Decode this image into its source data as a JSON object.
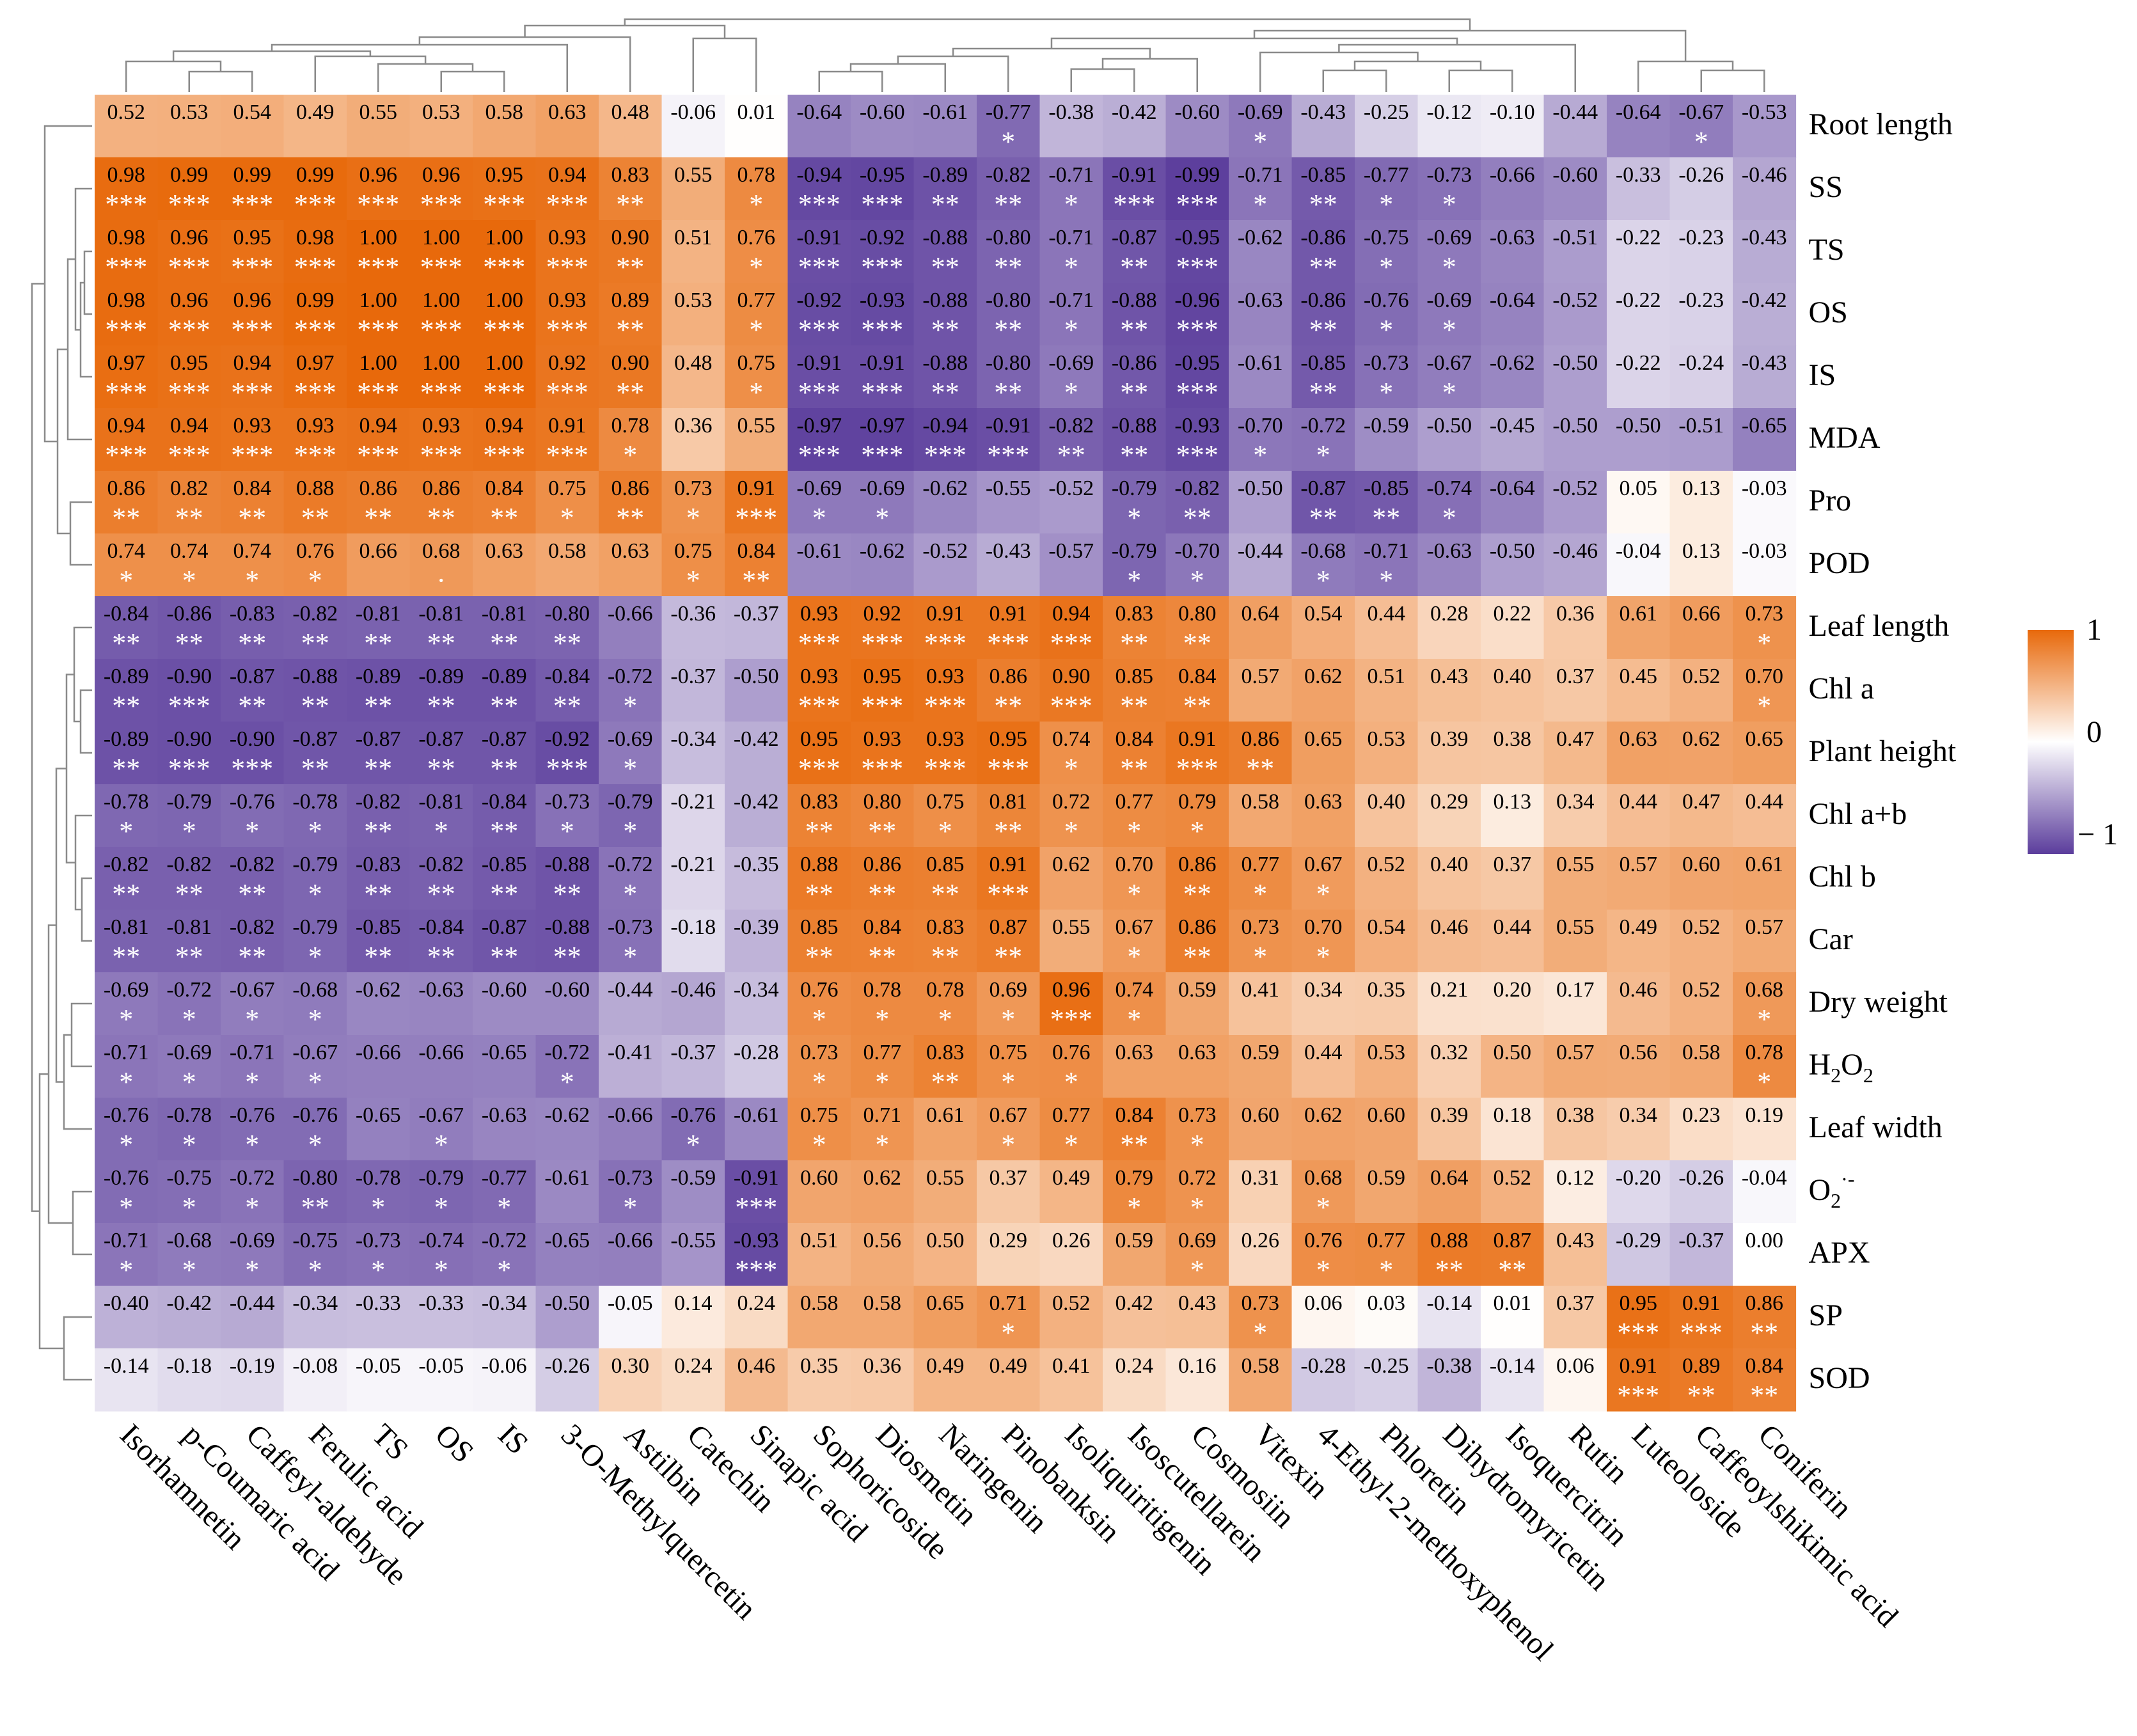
{
  "chart_data": {
    "type": "heatmap",
    "title": "",
    "columns": [
      "Isorhamnetin",
      "p-Coumaric acid",
      "Caffeyl-aldehyde",
      "Ferulic acid",
      "TS",
      "OS",
      "IS",
      "3-O-Methylquercetin",
      "Astilbin",
      "Catechin",
      "Sinapic acid",
      "Sophoricoside",
      "Diosmetin",
      "Naringenin",
      "Pinobanksin",
      "Isoliquiritigenin",
      "Isoscutellarein",
      "Cosmosiin",
      "Vitexin",
      "4-Ethyl-2-methoxyphenol",
      "Phloretin",
      "Dihydromyricetin",
      "Isoquercitrin",
      "Rutin",
      "Luteoloside",
      "Caffeoylshikimic acid",
      "Coniferin"
    ],
    "rows": [
      "Root length",
      "SS",
      "TS",
      "OS",
      "IS",
      "MDA",
      "Pro",
      "POD",
      "Leaf length",
      "Chl a",
      "Plant height",
      "Chl a+b",
      "Chl b",
      "Car",
      "Dry weight",
      "H2O2",
      "Leaf width",
      "O2-",
      "APX",
      "SP",
      "SOD"
    ],
    "row_labels_display": [
      {
        "main": "Root length"
      },
      {
        "main": "SS"
      },
      {
        "main": "TS"
      },
      {
        "main": "OS"
      },
      {
        "main": "IS"
      },
      {
        "main": "MDA"
      },
      {
        "main": "Pro"
      },
      {
        "main": "POD"
      },
      {
        "main": "Leaf length"
      },
      {
        "main": "Chl a"
      },
      {
        "main": "Plant height"
      },
      {
        "main": "Chl a+b"
      },
      {
        "main": "Chl b"
      },
      {
        "main": "Car"
      },
      {
        "main": "Dry weight"
      },
      {
        "main": "H",
        "sub": "2",
        "main2": "O",
        "sub2": "2"
      },
      {
        "main": "Leaf width"
      },
      {
        "main": "O",
        "sub": "2",
        "sup": "·-"
      },
      {
        "main": "APX"
      },
      {
        "main": "SP"
      },
      {
        "main": "SOD"
      }
    ],
    "values": [
      [
        0.52,
        0.53,
        0.54,
        0.49,
        0.55,
        0.53,
        0.58,
        0.63,
        0.48,
        -0.06,
        0.01,
        -0.64,
        -0.6,
        -0.61,
        -0.77,
        -0.38,
        -0.42,
        -0.6,
        -0.69,
        -0.43,
        -0.25,
        -0.12,
        -0.1,
        -0.44,
        -0.64,
        -0.67,
        -0.53
      ],
      [
        0.98,
        0.99,
        0.99,
        0.99,
        0.96,
        0.96,
        0.95,
        0.94,
        0.83,
        0.55,
        0.78,
        -0.94,
        -0.95,
        -0.89,
        -0.82,
        -0.71,
        -0.91,
        -0.99,
        -0.71,
        -0.85,
        -0.77,
        -0.73,
        -0.66,
        -0.6,
        -0.33,
        -0.26,
        -0.46
      ],
      [
        0.98,
        0.96,
        0.95,
        0.98,
        1.0,
        1.0,
        1.0,
        0.93,
        0.9,
        0.51,
        0.76,
        -0.91,
        -0.92,
        -0.88,
        -0.8,
        -0.71,
        -0.87,
        -0.95,
        -0.62,
        -0.86,
        -0.75,
        -0.69,
        -0.63,
        -0.51,
        -0.22,
        -0.23,
        -0.43
      ],
      [
        0.98,
        0.96,
        0.96,
        0.99,
        1.0,
        1.0,
        1.0,
        0.93,
        0.89,
        0.53,
        0.77,
        -0.92,
        -0.93,
        -0.88,
        -0.8,
        -0.71,
        -0.88,
        -0.96,
        -0.63,
        -0.86,
        -0.76,
        -0.69,
        -0.64,
        -0.52,
        -0.22,
        -0.23,
        -0.42
      ],
      [
        0.97,
        0.95,
        0.94,
        0.97,
        1.0,
        1.0,
        1.0,
        0.92,
        0.9,
        0.48,
        0.75,
        -0.91,
        -0.91,
        -0.88,
        -0.8,
        -0.69,
        -0.86,
        -0.95,
        -0.61,
        -0.85,
        -0.73,
        -0.67,
        -0.62,
        -0.5,
        -0.22,
        -0.24,
        -0.43
      ],
      [
        0.94,
        0.94,
        0.93,
        0.93,
        0.94,
        0.93,
        0.94,
        0.91,
        0.78,
        0.36,
        0.55,
        -0.97,
        -0.97,
        -0.94,
        -0.91,
        -0.82,
        -0.88,
        -0.93,
        -0.7,
        -0.72,
        -0.59,
        -0.5,
        -0.45,
        -0.5,
        -0.5,
        -0.51,
        -0.65
      ],
      [
        0.86,
        0.82,
        0.84,
        0.88,
        0.86,
        0.86,
        0.84,
        0.75,
        0.86,
        0.73,
        0.91,
        -0.69,
        -0.69,
        -0.62,
        -0.55,
        -0.52,
        -0.79,
        -0.82,
        -0.5,
        -0.87,
        -0.85,
        -0.74,
        -0.64,
        -0.52,
        0.05,
        0.13,
        -0.03
      ],
      [
        0.74,
        0.74,
        0.74,
        0.76,
        0.66,
        0.68,
        0.63,
        0.58,
        0.63,
        0.75,
        0.84,
        -0.61,
        -0.62,
        -0.52,
        -0.43,
        -0.57,
        -0.79,
        -0.7,
        -0.44,
        -0.68,
        -0.71,
        -0.63,
        -0.5,
        -0.46,
        -0.04,
        0.13,
        -0.03
      ],
      [
        -0.84,
        -0.86,
        -0.83,
        -0.82,
        -0.81,
        -0.81,
        -0.81,
        -0.8,
        -0.66,
        -0.36,
        -0.37,
        0.93,
        0.92,
        0.91,
        0.91,
        0.94,
        0.83,
        0.8,
        0.64,
        0.54,
        0.44,
        0.28,
        0.22,
        0.36,
        0.61,
        0.66,
        0.73
      ],
      [
        -0.89,
        -0.9,
        -0.87,
        -0.88,
        -0.89,
        -0.89,
        -0.89,
        -0.84,
        -0.72,
        -0.37,
        -0.5,
        0.93,
        0.95,
        0.93,
        0.86,
        0.9,
        0.85,
        0.84,
        0.57,
        0.62,
        0.51,
        0.43,
        0.4,
        0.37,
        0.45,
        0.52,
        0.7
      ],
      [
        -0.89,
        -0.9,
        -0.9,
        -0.87,
        -0.87,
        -0.87,
        -0.87,
        -0.92,
        -0.69,
        -0.34,
        -0.42,
        0.95,
        0.93,
        0.93,
        0.95,
        0.74,
        0.84,
        0.91,
        0.86,
        0.65,
        0.53,
        0.39,
        0.38,
        0.47,
        0.63,
        0.62,
        0.65
      ],
      [
        -0.78,
        -0.79,
        -0.76,
        -0.78,
        -0.82,
        -0.81,
        -0.84,
        -0.73,
        -0.79,
        -0.21,
        -0.42,
        0.83,
        0.8,
        0.75,
        0.81,
        0.72,
        0.77,
        0.79,
        0.58,
        0.63,
        0.4,
        0.29,
        0.13,
        0.34,
        0.44,
        0.47,
        0.44
      ],
      [
        -0.82,
        -0.82,
        -0.82,
        -0.79,
        -0.83,
        -0.82,
        -0.85,
        -0.88,
        -0.72,
        -0.21,
        -0.35,
        0.88,
        0.86,
        0.85,
        0.91,
        0.62,
        0.7,
        0.86,
        0.77,
        0.67,
        0.52,
        0.4,
        0.37,
        0.55,
        0.57,
        0.6,
        0.61
      ],
      [
        -0.81,
        -0.81,
        -0.82,
        -0.79,
        -0.85,
        -0.84,
        -0.87,
        -0.88,
        -0.73,
        -0.18,
        -0.39,
        0.85,
        0.84,
        0.83,
        0.87,
        0.55,
        0.67,
        0.86,
        0.73,
        0.7,
        0.54,
        0.46,
        0.44,
        0.55,
        0.49,
        0.52,
        0.57
      ],
      [
        -0.69,
        -0.72,
        -0.67,
        -0.68,
        -0.62,
        -0.63,
        -0.6,
        -0.6,
        -0.44,
        -0.46,
        -0.34,
        0.76,
        0.78,
        0.78,
        0.69,
        0.96,
        0.74,
        0.59,
        0.41,
        0.34,
        0.35,
        0.21,
        0.2,
        0.17,
        0.46,
        0.52,
        0.68
      ],
      [
        -0.71,
        -0.69,
        -0.71,
        -0.67,
        -0.66,
        -0.66,
        -0.65,
        -0.72,
        -0.41,
        -0.37,
        -0.28,
        0.73,
        0.77,
        0.83,
        0.75,
        0.76,
        0.63,
        0.63,
        0.59,
        0.44,
        0.53,
        0.32,
        0.5,
        0.57,
        0.56,
        0.58,
        0.78
      ],
      [
        -0.76,
        -0.78,
        -0.76,
        -0.76,
        -0.65,
        -0.67,
        -0.63,
        -0.62,
        -0.66,
        -0.76,
        -0.61,
        0.75,
        0.71,
        0.61,
        0.67,
        0.77,
        0.84,
        0.73,
        0.6,
        0.62,
        0.6,
        0.39,
        0.18,
        0.38,
        0.34,
        0.23,
        0.19
      ],
      [
        -0.76,
        -0.75,
        -0.72,
        -0.8,
        -0.78,
        -0.79,
        -0.77,
        -0.61,
        -0.73,
        -0.59,
        -0.91,
        0.6,
        0.62,
        0.55,
        0.37,
        0.49,
        0.79,
        0.72,
        0.31,
        0.68,
        0.59,
        0.64,
        0.52,
        0.12,
        -0.2,
        -0.26,
        -0.04
      ],
      [
        -0.71,
        -0.68,
        -0.69,
        -0.75,
        -0.73,
        -0.74,
        -0.72,
        -0.65,
        -0.66,
        -0.55,
        -0.93,
        0.51,
        0.56,
        0.5,
        0.29,
        0.26,
        0.59,
        0.69,
        0.26,
        0.76,
        0.77,
        0.88,
        0.87,
        0.43,
        -0.29,
        -0.37,
        -0.0
      ],
      [
        -0.4,
        -0.42,
        -0.44,
        -0.34,
        -0.33,
        -0.33,
        -0.34,
        -0.5,
        -0.05,
        0.14,
        0.24,
        0.58,
        0.58,
        0.65,
        0.71,
        0.52,
        0.42,
        0.43,
        0.73,
        0.06,
        0.03,
        -0.14,
        0.01,
        0.37,
        0.95,
        0.91,
        0.86
      ],
      [
        -0.14,
        -0.18,
        -0.19,
        -0.08,
        -0.05,
        -0.05,
        -0.06,
        -0.26,
        0.3,
        0.24,
        0.46,
        0.35,
        0.36,
        0.49,
        0.49,
        0.41,
        0.24,
        0.16,
        0.58,
        -0.28,
        -0.25,
        -0.38,
        -0.14,
        0.06,
        0.91,
        0.89,
        0.84
      ]
    ],
    "significance": [
      [
        "",
        "",
        "",
        "",
        "",
        "",
        "",
        "",
        "",
        "",
        "",
        "",
        "",
        "",
        "*",
        "",
        "",
        "",
        "*",
        "",
        "",
        "",
        "",
        "",
        "",
        "*",
        ""
      ],
      [
        "***",
        "***",
        "***",
        "***",
        "***",
        "***",
        "***",
        "***",
        "**",
        "",
        "*",
        "***",
        "***",
        "**",
        "**",
        "*",
        "***",
        "***",
        "*",
        "**",
        "*",
        "*",
        "",
        "",
        "",
        "",
        ""
      ],
      [
        "***",
        "***",
        "***",
        "***",
        "***",
        "***",
        "***",
        "***",
        "**",
        "",
        "*",
        "***",
        "***",
        "**",
        "**",
        "*",
        "**",
        "***",
        "",
        "**",
        "*",
        "*",
        "",
        "",
        "",
        "",
        ""
      ],
      [
        "***",
        "***",
        "***",
        "***",
        "***",
        "***",
        "***",
        "***",
        "**",
        "",
        "*",
        "***",
        "***",
        "**",
        "**",
        "*",
        "**",
        "***",
        "",
        "**",
        "*",
        "*",
        "",
        "",
        "",
        "",
        ""
      ],
      [
        "***",
        "***",
        "***",
        "***",
        "***",
        "***",
        "***",
        "***",
        "**",
        "",
        "*",
        "***",
        "***",
        "**",
        "**",
        "*",
        "**",
        "***",
        "",
        "**",
        "*",
        "*",
        "",
        "",
        "",
        "",
        ""
      ],
      [
        "***",
        "***",
        "***",
        "***",
        "***",
        "***",
        "***",
        "***",
        "*",
        "",
        "",
        "***",
        "***",
        "***",
        "***",
        "**",
        "**",
        "***",
        "*",
        "*",
        "",
        "",
        "",
        "",
        "",
        "",
        ""
      ],
      [
        "**",
        "**",
        "**",
        "**",
        "**",
        "**",
        "**",
        "*",
        "**",
        "*",
        "***",
        "*",
        "*",
        "",
        "",
        "",
        "*",
        "**",
        "",
        "**",
        "**",
        "*",
        "",
        "",
        "",
        "",
        ""
      ],
      [
        "*",
        "*",
        "*",
        "*",
        "",
        "·",
        "",
        "",
        "",
        "*",
        "**",
        "",
        "",
        "",
        "",
        "",
        "*",
        "*",
        "",
        "*",
        "*",
        "",
        "",
        "",
        "",
        "",
        ""
      ],
      [
        "**",
        "**",
        "**",
        "**",
        "**",
        "**",
        "**",
        "**",
        "",
        "",
        "",
        "***",
        "***",
        "***",
        "***",
        "***",
        "**",
        "**",
        "",
        "",
        "",
        "",
        "",
        "",
        "",
        "",
        "*"
      ],
      [
        "**",
        "***",
        "**",
        "**",
        "**",
        "**",
        "**",
        "**",
        "*",
        "",
        "",
        "***",
        "***",
        "***",
        "**",
        "***",
        "**",
        "**",
        "",
        "",
        "",
        "",
        "",
        "",
        "",
        "",
        "*"
      ],
      [
        "**",
        "***",
        "***",
        "**",
        "**",
        "**",
        "**",
        "***",
        "*",
        "",
        "",
        "***",
        "***",
        "***",
        "***",
        "*",
        "**",
        "***",
        "**",
        "",
        "",
        "",
        "",
        "",
        "",
        "",
        ""
      ],
      [
        "*",
        "*",
        "*",
        "*",
        "**",
        "*",
        "**",
        "*",
        "*",
        "",
        "",
        "**",
        "**",
        "*",
        "**",
        "*",
        "*",
        "*",
        "",
        "",
        "",
        "",
        "",
        "",
        "",
        "",
        ""
      ],
      [
        "**",
        "**",
        "**",
        "*",
        "**",
        "**",
        "**",
        "**",
        "*",
        "",
        "",
        "**",
        "**",
        "**",
        "***",
        "",
        "*",
        "**",
        "*",
        "*",
        "",
        "",
        "",
        "",
        "",
        "",
        ""
      ],
      [
        "**",
        "**",
        "**",
        "*",
        "**",
        "**",
        "**",
        "**",
        "*",
        "",
        "",
        "**",
        "**",
        "**",
        "**",
        "",
        "*",
        "**",
        "*",
        "*",
        "",
        "",
        "",
        "",
        "",
        "",
        ""
      ],
      [
        "*",
        "*",
        "*",
        "*",
        "",
        "",
        "",
        "",
        "",
        "",
        "",
        "*",
        "*",
        "*",
        "*",
        "***",
        "*",
        "",
        "",
        "",
        "",
        "",
        "",
        "",
        "",
        "",
        "*"
      ],
      [
        "*",
        "*",
        "*",
        "*",
        "",
        "",
        "",
        "*",
        "",
        "",
        "",
        "*",
        "*",
        "**",
        "*",
        "*",
        "",
        "",
        "",
        "",
        "",
        "",
        "",
        "",
        "",
        "",
        "*"
      ],
      [
        "*",
        "*",
        "*",
        "*",
        "",
        "*",
        "",
        "",
        "",
        "*",
        "",
        "*",
        "*",
        "",
        "*",
        "*",
        "**",
        "*",
        "",
        "",
        "",
        "",
        "",
        "",
        "",
        "",
        ""
      ],
      [
        "*",
        "*",
        "*",
        "**",
        "*",
        "*",
        "*",
        "",
        "*",
        "",
        "***",
        "",
        "",
        "",
        "",
        "",
        "*",
        "*",
        "",
        "*",
        "",
        "",
        "",
        "",
        "",
        "",
        ""
      ],
      [
        "*",
        "*",
        "*",
        "*",
        "*",
        "*",
        "*",
        "",
        "",
        "",
        "***",
        "",
        "",
        "",
        "",
        "",
        "",
        "*",
        "",
        "*",
        "*",
        "**",
        "**",
        "",
        "",
        "",
        ""
      ],
      [
        "",
        "",
        "",
        "",
        "",
        "",
        "",
        "",
        "",
        "",
        "",
        "",
        "",
        "",
        "*",
        "",
        "",
        "",
        "*",
        "",
        "",
        "",
        "",
        "",
        "***",
        "***",
        "**"
      ],
      [
        "",
        "",
        "",
        "",
        "",
        "",
        "",
        "",
        "",
        "",
        "",
        "",
        "",
        "",
        "",
        "",
        "",
        "",
        "",
        "",
        "",
        "",
        "",
        "",
        "***",
        "**",
        "**"
      ]
    ],
    "color_scale": {
      "low": -1,
      "mid": 0,
      "high": 1,
      "low_color": "#5b3d9c",
      "mid_color": "#ffffff",
      "high_color": "#e8690b"
    },
    "legend_ticks": [
      "1",
      "0",
      "− 1"
    ],
    "row_dendrogram_order": [
      "Root length",
      "SS",
      "TS",
      "OS",
      "IS",
      "MDA",
      "Pro",
      "POD",
      "Leaf length",
      "Chl a",
      "Plant height",
      "Chl a+b",
      "Chl b",
      "Car",
      "Dry weight",
      "H2O2",
      "Leaf width",
      "O2-",
      "APX",
      "SP",
      "SOD"
    ]
  }
}
